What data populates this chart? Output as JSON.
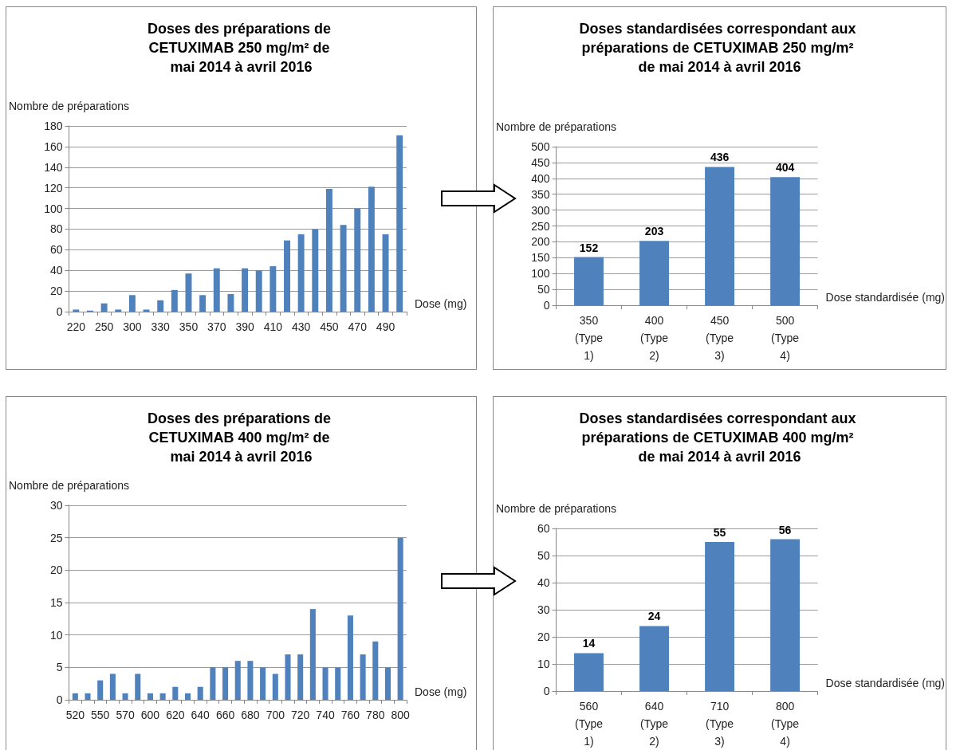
{
  "chart_data": [
    {
      "type": "bar",
      "title": "Doses des préparations de CETUXIMAB 250 mg/m² de mai 2014 à avril 2016",
      "xlabel": "Dose (mg)",
      "ylabel": "Nombre de préparations",
      "categories": [
        "220",
        null,
        "250",
        null,
        "300",
        null,
        "330",
        null,
        "350",
        null,
        "370",
        null,
        "390",
        null,
        "410",
        null,
        "430",
        null,
        "450",
        null,
        "470",
        null,
        "490",
        null
      ],
      "values": [
        2,
        1,
        8,
        2,
        16,
        2,
        11,
        21,
        37,
        16,
        42,
        17,
        42,
        40,
        44,
        69,
        75,
        80,
        119,
        84,
        100,
        121,
        75,
        171
      ],
      "color": "#4f81bd",
      "ylim": [
        0,
        180
      ],
      "yticks": [
        0,
        20,
        40,
        60,
        80,
        100,
        120,
        140,
        160,
        180
      ],
      "grid": "y"
    },
    {
      "type": "bar",
      "title": "Doses standardisées correspondant aux préparations de CETUXIMAB 250 mg/m² de mai 2014 à avril 2016",
      "xlabel": "Dose standardisée (mg)",
      "ylabel": "Nombre de préparations",
      "categories": [
        "350 (Type 1)",
        "400 (Type 2)",
        "450 (Type 3)",
        "500 (Type 4)"
      ],
      "values": [
        152,
        203,
        436,
        404
      ],
      "color": "#4f81bd",
      "ylim": [
        0,
        500
      ],
      "yticks": [
        0,
        50,
        100,
        150,
        200,
        250,
        300,
        350,
        400,
        450,
        500
      ],
      "grid": "y",
      "data_labels": true
    },
    {
      "type": "bar",
      "title": "Doses des préparations de CETUXIMAB 400 mg/m² de mai 2014 à avril 2016",
      "xlabel": "Dose (mg)",
      "ylabel": "Nombre de préparations",
      "categories": [
        "520",
        null,
        "550",
        null,
        "570",
        null,
        "600",
        null,
        "620",
        null,
        "640",
        null,
        "660",
        null,
        "680",
        null,
        "700",
        null,
        "720",
        null,
        "740",
        null,
        "760",
        null,
        "780",
        null,
        "800"
      ],
      "values": [
        1,
        1,
        3,
        4,
        1,
        4,
        1,
        1,
        2,
        1,
        2,
        5,
        5,
        6,
        6,
        5,
        4,
        7,
        7,
        14,
        5,
        5,
        13,
        7,
        9,
        5,
        25
      ],
      "color": "#4f81bd",
      "ylim": [
        0,
        30
      ],
      "yticks": [
        0,
        5,
        10,
        15,
        20,
        25,
        30
      ],
      "grid": "y"
    },
    {
      "type": "bar",
      "title": "Doses standardisées correspondant aux préparations de CETUXIMAB 400 mg/m² de mai 2014 à avril 2016",
      "xlabel": "Dose standardisée (mg)",
      "ylabel": "Nombre de préparations",
      "categories": [
        "560 (Type 1)",
        "640 (Type 2)",
        "710 (Type 3)",
        "800 (Type 4)"
      ],
      "values": [
        14,
        24,
        55,
        56
      ],
      "color": "#4f81bd",
      "ylim": [
        0,
        60
      ],
      "yticks": [
        0,
        10,
        20,
        30,
        40,
        50,
        60
      ],
      "grid": "y",
      "data_labels": true
    }
  ]
}
